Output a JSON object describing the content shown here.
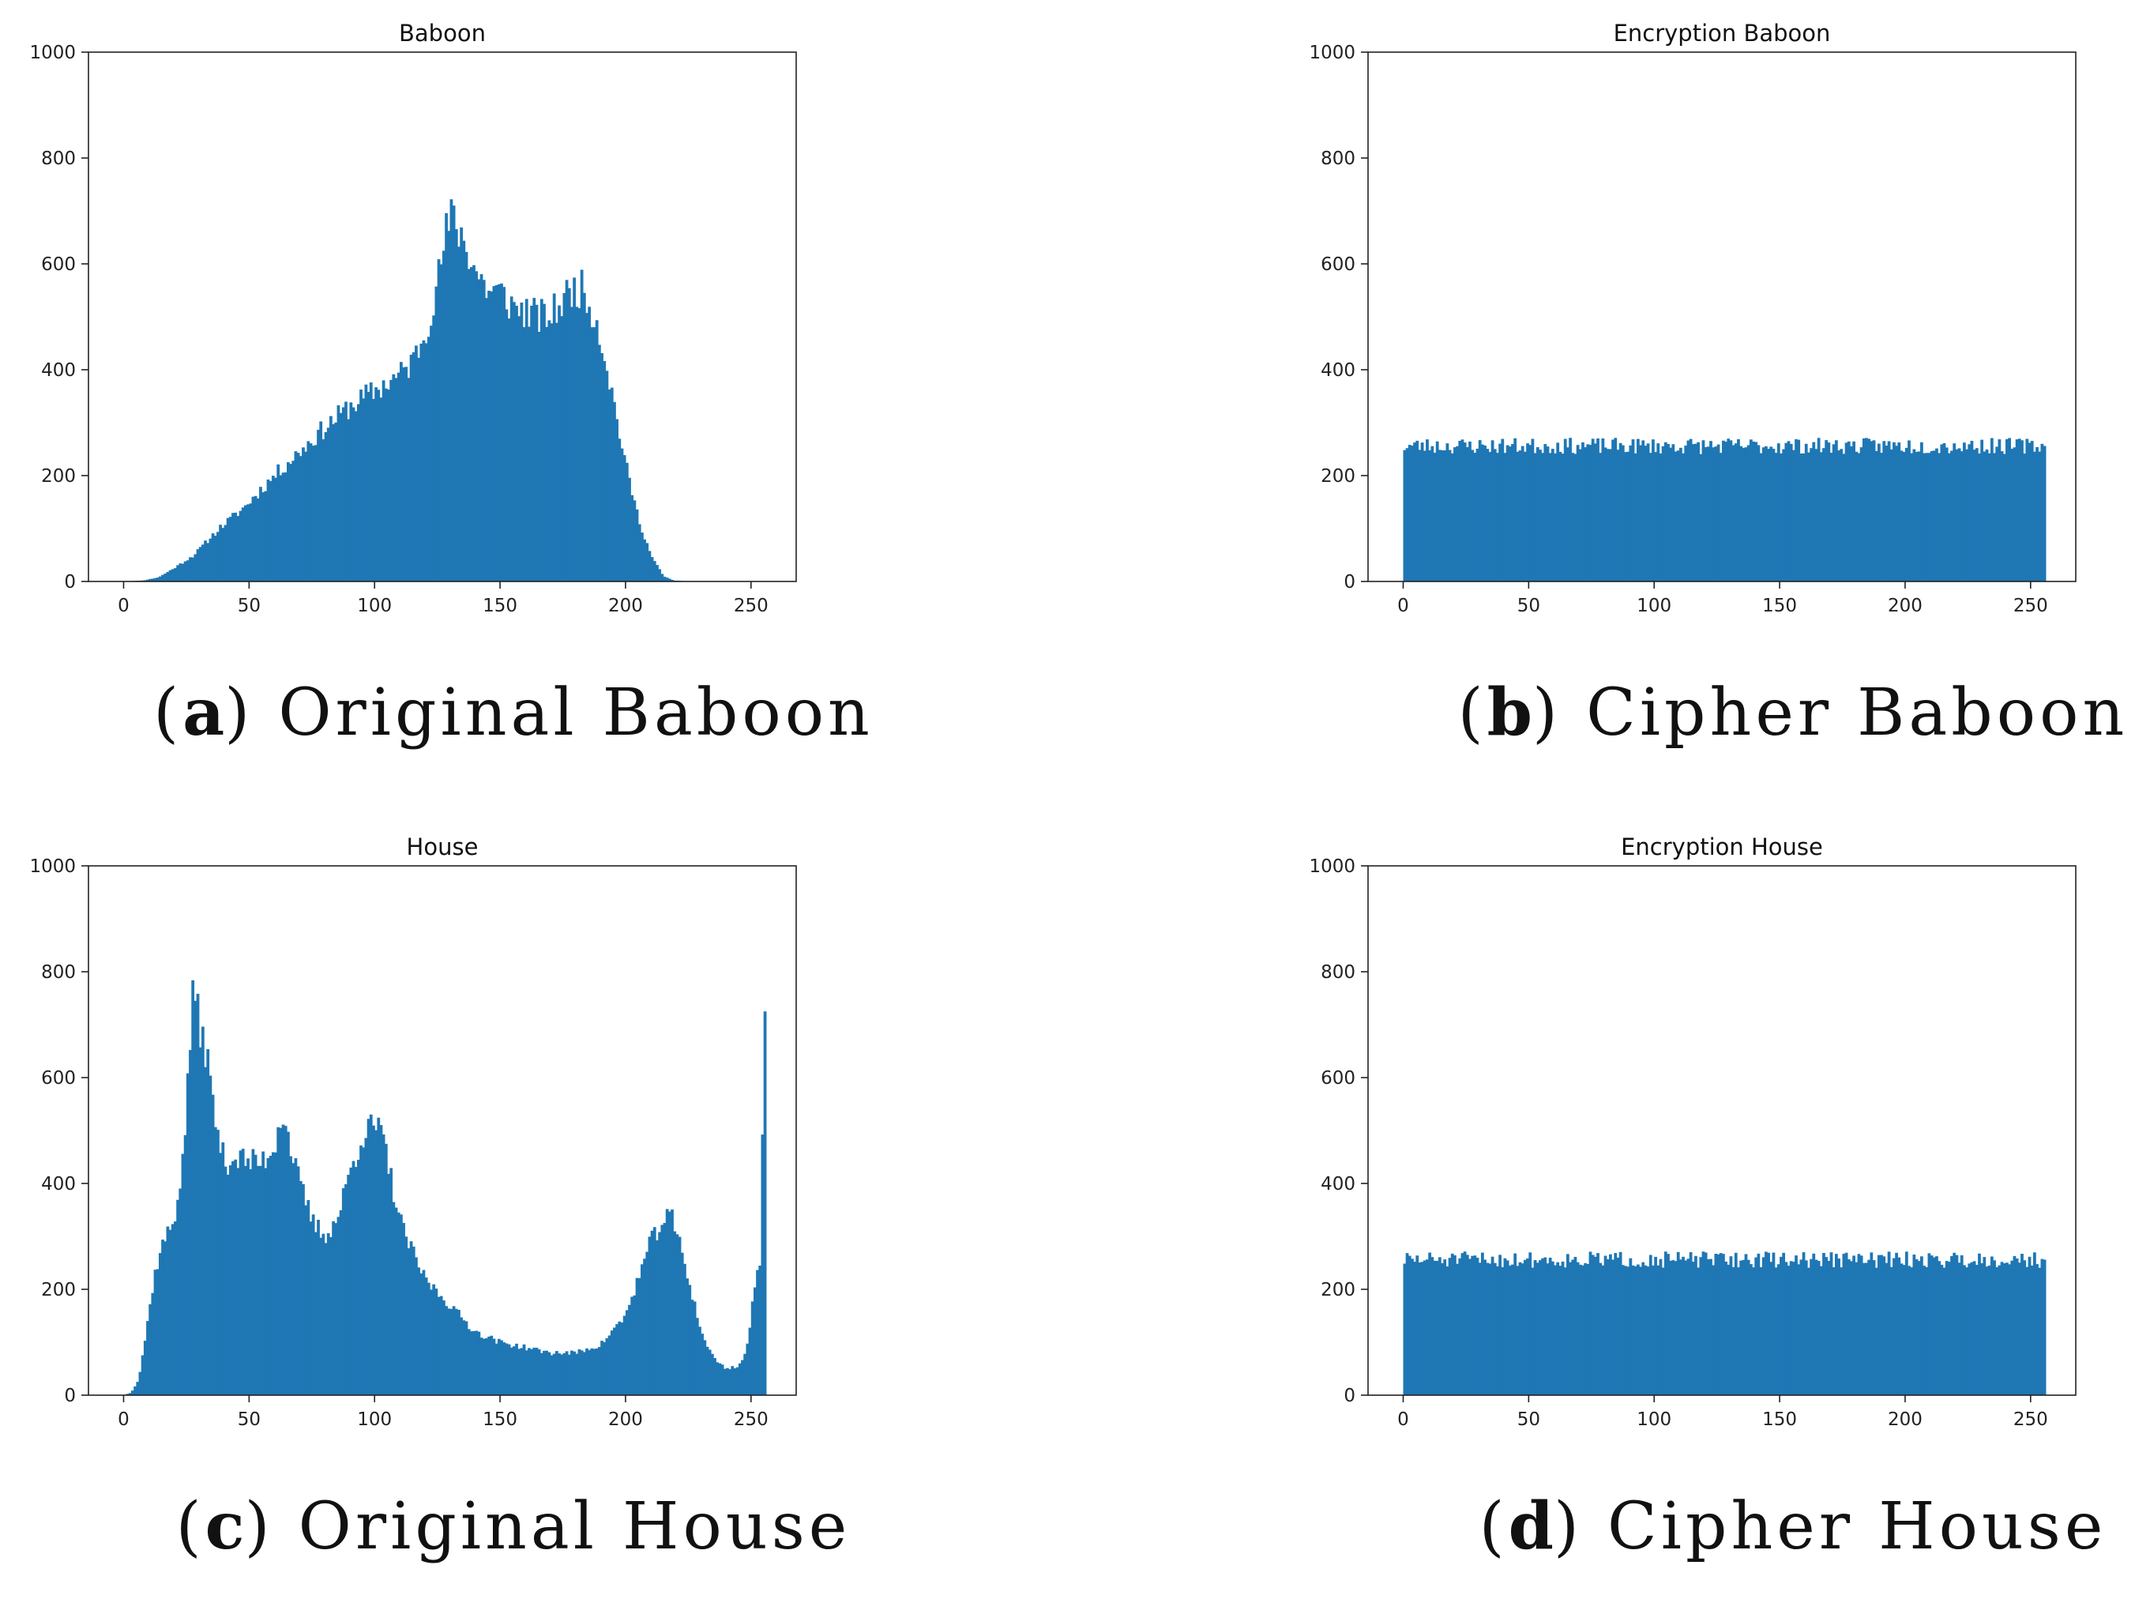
{
  "chart_data": [
    {
      "type": "bar",
      "title": "Baboon",
      "caption_letter": "a",
      "caption_text": "Original Baboon",
      "xlim": [
        -14,
        268
      ],
      "ylim": [
        0,
        1000
      ],
      "xticks": [
        0,
        50,
        100,
        150,
        200,
        250
      ],
      "yticks": [
        0,
        200,
        400,
        600,
        800,
        1000
      ],
      "color": "#1f77b4",
      "profile_x": [
        0,
        8,
        14,
        20,
        28,
        38,
        48,
        55,
        60,
        70,
        80,
        90,
        100,
        110,
        115,
        120,
        125,
        128,
        131,
        136,
        140,
        145,
        150,
        155,
        160,
        165,
        170,
        175,
        178,
        182,
        185,
        188,
        192,
        196,
        200,
        205,
        210,
        215,
        219,
        225,
        255
      ],
      "profile_y": [
        0,
        2,
        8,
        25,
        50,
        100,
        140,
        175,
        200,
        245,
        290,
        330,
        360,
        390,
        415,
        470,
        560,
        650,
        690,
        640,
        590,
        550,
        545,
        520,
        510,
        500,
        500,
        530,
        550,
        555,
        530,
        500,
        420,
        320,
        220,
        120,
        50,
        10,
        2,
        0,
        0
      ],
      "amp": 0.07,
      "seed": 11
    },
    {
      "type": "bar",
      "title": "Encryption Baboon",
      "caption_letter": "b",
      "caption_text": "Cipher Baboon",
      "xlim": [
        -14,
        268
      ],
      "ylim": [
        0,
        1000
      ],
      "xticks": [
        0,
        50,
        100,
        150,
        200,
        250
      ],
      "yticks": [
        0,
        200,
        400,
        600,
        800,
        1000
      ],
      "color": "#1f77b4",
      "profile_x": [
        0,
        255
      ],
      "profile_y": [
        256,
        256
      ],
      "amp": 0.06,
      "seed": 23
    },
    {
      "type": "bar",
      "title": "House",
      "caption_letter": "c",
      "caption_text": "Original House",
      "xlim": [
        -14,
        268
      ],
      "ylim": [
        0,
        1000
      ],
      "xticks": [
        0,
        50,
        100,
        150,
        200,
        250
      ],
      "yticks": [
        0,
        200,
        400,
        600,
        800,
        1000
      ],
      "color": "#1f77b4",
      "profile_x": [
        0,
        3,
        6,
        9,
        12,
        15,
        20,
        24,
        26,
        28,
        30,
        33,
        36,
        40,
        45,
        50,
        55,
        60,
        63,
        66,
        70,
        75,
        80,
        85,
        90,
        95,
        100,
        103,
        106,
        110,
        115,
        120,
        130,
        140,
        150,
        160,
        170,
        180,
        190,
        200,
        205,
        210,
        215,
        218,
        222,
        226,
        230,
        235,
        240,
        245,
        248,
        250,
        252,
        254,
        255
      ],
      "profile_y": [
        0,
        5,
        30,
        120,
        220,
        280,
        330,
        450,
        650,
        770,
        700,
        650,
        530,
        440,
        450,
        440,
        440,
        470,
        540,
        480,
        400,
        330,
        300,
        330,
        420,
        490,
        510,
        490,
        420,
        330,
        270,
        220,
        170,
        120,
        100,
        90,
        80,
        80,
        95,
        150,
        220,
        290,
        330,
        340,
        280,
        200,
        120,
        70,
        50,
        55,
        80,
        150,
        220,
        250,
        725
      ],
      "amp": 0.06,
      "seed": 37
    },
    {
      "type": "bar",
      "title": "Encryption House",
      "caption_letter": "d",
      "caption_text": "Cipher House",
      "xlim": [
        -14,
        268
      ],
      "ylim": [
        0,
        1000
      ],
      "xticks": [
        0,
        50,
        100,
        150,
        200,
        250
      ],
      "yticks": [
        0,
        200,
        400,
        600,
        800,
        1000
      ],
      "color": "#1f77b4",
      "profile_x": [
        0,
        255
      ],
      "profile_y": [
        256,
        256
      ],
      "amp": 0.06,
      "seed": 51
    }
  ]
}
